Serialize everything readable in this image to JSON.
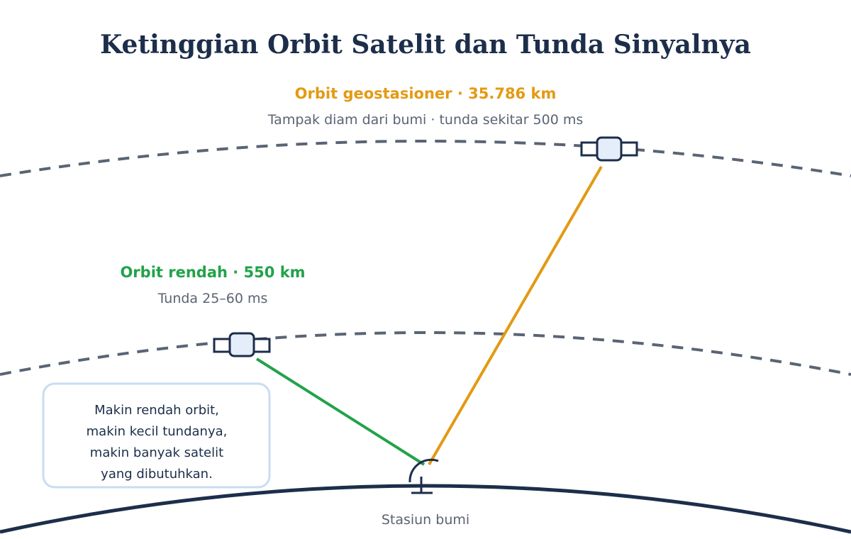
{
  "header": {
    "title": "Ketinggian Orbit Satelit dan Tunda Sinyalnya"
  },
  "orbits": [
    {
      "label": "Orbit geostasioner · 35.786 km",
      "description": "Tampak diam dari bumi · tunda sekitar 500 ms"
    },
    {
      "label": "Orbit rendah · 550 km",
      "description": "Tunda 25–60 ms"
    }
  ],
  "note": {
    "lines": [
      "Makin rendah orbit,",
      "makin kecil tundanya,",
      "makin banyak satelit",
      "yang dibutuhkan."
    ]
  },
  "ground_station": {
    "label": "Stasiun bumi"
  }
}
